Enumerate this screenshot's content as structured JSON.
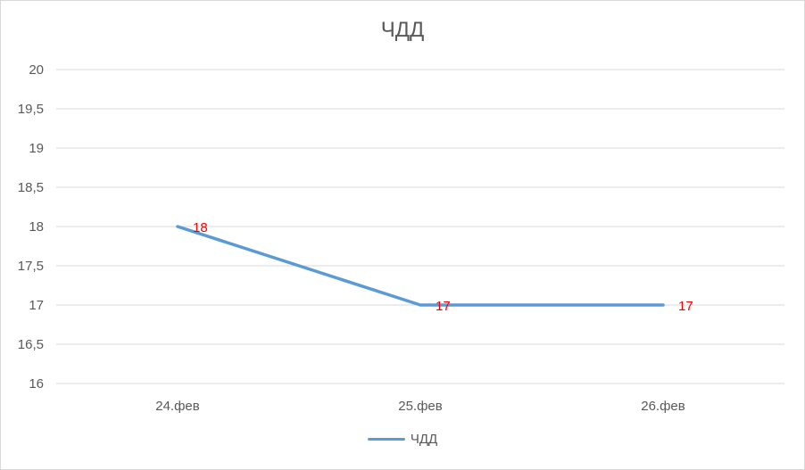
{
  "chart_data": {
    "type": "line",
    "title": "ЧДД",
    "categories": [
      "24.фев",
      "25.фев",
      "26.фев"
    ],
    "series": [
      {
        "name": "ЧДД",
        "values": [
          18,
          17,
          17
        ],
        "color": "#5b9bd5",
        "label_color": "#ff0000"
      }
    ],
    "ylim": [
      16,
      20
    ],
    "y_step": 0.5,
    "y_ticks": [
      "16",
      "16,5",
      "17",
      "17,5",
      "18",
      "18,5",
      "19",
      "19,5",
      "20"
    ],
    "data_labels": [
      "18",
      "17",
      "17"
    ],
    "grid": true,
    "grid_color": "#d9d9d9",
    "legend_position": "bottom"
  }
}
